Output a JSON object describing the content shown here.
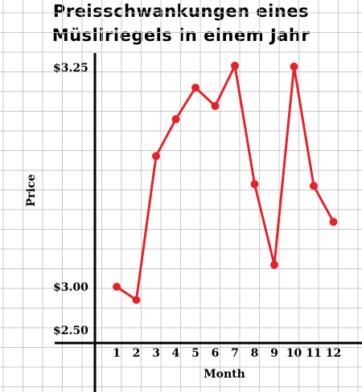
{
  "chart_data": {
    "type": "line",
    "title_line1": "Preisschwankungen eines",
    "title_line2": "Müsliriegels in einem Jahr",
    "xlabel": "Month",
    "ylabel": "Price",
    "x": [
      1,
      2,
      3,
      4,
      5,
      6,
      7,
      8,
      9,
      10,
      11,
      12
    ],
    "y_tick_labels": [
      "$3.25",
      "$3.00",
      "$2.50"
    ],
    "series": [
      {
        "values": [
          3.0,
          2.985,
          3.149,
          3.191,
          3.227,
          3.206,
          3.252,
          3.117,
          3.025,
          3.251,
          3.115,
          3.074
        ]
      }
    ],
    "axis_break": "between $2.50 and $3.00",
    "grid": true,
    "colors": {
      "line": "#e3232b",
      "grid": "#c8c8c8",
      "axis": "#000000"
    }
  }
}
